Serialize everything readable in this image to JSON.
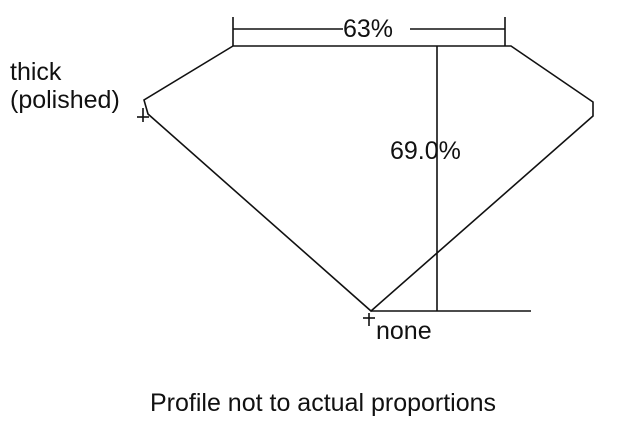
{
  "diagram": {
    "table_label": "63%",
    "depth_label": "69.0%",
    "girdle_label_line1": "thick",
    "girdle_label_line2": "(polished)",
    "culet_label": "none",
    "caption": "Profile not to actual proportions",
    "line_color": "#111111"
  }
}
